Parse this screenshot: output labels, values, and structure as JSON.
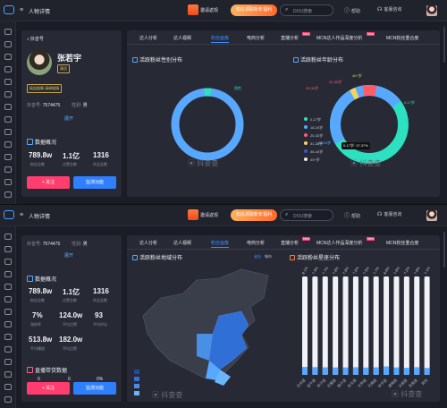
{
  "header": {
    "breadcrumb": "人物详情",
    "invite": "邀请返现",
    "promo": "知瓜领取新年福利",
    "search_placeholder": "DOU搜索",
    "help": "帮助",
    "support": "客服咨询"
  },
  "profile": {
    "platform": "抖音号",
    "name": "张若宇",
    "verified_tag": "演员",
    "category_tag": "搞笑剧情 演绎剧情",
    "douyin_id_label": "抖音号:",
    "douyin_id": "7574475",
    "gender_label": "性别:",
    "gender": "男",
    "expand": "展开",
    "overview_title": "数据概况",
    "stats_row1": [
      {
        "value": "789.8w",
        "label": "粉丝总数"
      },
      {
        "value": "1.1亿",
        "label": "点赞总数"
      },
      {
        "value": "1316",
        "label": "作品总数"
      }
    ],
    "stats_row2": [
      {
        "value": "7%",
        "label": "涨粉率"
      },
      {
        "value": "124.0w",
        "label": "平均点赞"
      },
      {
        "value": "93",
        "label": "平均评论"
      }
    ],
    "stats_row3": [
      {
        "value": "513.8w",
        "label": "平均播放"
      },
      {
        "value": "182.0w",
        "label": "平均点赞"
      }
    ],
    "live_title": "直播带货数据",
    "live_values": [
      "0",
      "0",
      "0%"
    ],
    "follow": "+ 关注",
    "monitor": "监测功能"
  },
  "tabs": [
    "达人分析",
    "达人视频",
    "粉丝画像",
    "电商分析",
    "直播分析",
    "MCN达人作品深度分析",
    "MCN粉丝重合度"
  ],
  "tab_badges": [
    "New",
    "New"
  ],
  "gender_chart": {
    "title": "活跃粉丝性别分布",
    "male_label": "男性",
    "female_label": "女性",
    "watermark": "抖查查"
  },
  "age_chart": {
    "title": "活跃粉丝年龄分布",
    "legend": [
      "0-17岁",
      "18-24岁",
      "25-30岁",
      "31-35岁",
      "36-40岁",
      "40+岁"
    ],
    "colors": [
      "#2de0c0",
      "#58a8ff",
      "#ff5c6a",
      "#f4d35e",
      "#3a57c9",
      "#e9e9ee"
    ],
    "callouts": [
      "40+岁",
      "31-35岁",
      "25-30岁",
      "18-24岁",
      "0-17岁"
    ],
    "tooltip": "0-17岁: 37.37%",
    "watermark": "抖查查"
  },
  "region_chart": {
    "title": "活跃粉丝地域分布",
    "tab_province": "省份",
    "tab_city": "城市",
    "watermark": "抖查查"
  },
  "hometown_chart": {
    "title": "活跃粉丝星座分布",
    "watermark": "抖查查"
  },
  "chart_data": [
    {
      "type": "pie",
      "title": "活跃粉丝性别分布",
      "categories": [
        "男性",
        "女性"
      ],
      "values": [
        3,
        97
      ]
    },
    {
      "type": "pie",
      "title": "活跃粉丝年龄分布",
      "categories": [
        "0-17岁",
        "18-24岁",
        "25-30岁",
        "31-35岁",
        "36-40岁",
        "40+岁"
      ],
      "values": [
        37.37,
        48,
        6,
        4,
        2,
        2.63
      ]
    },
    {
      "type": "bar",
      "title": "活跃粉丝星座分布",
      "categories": [
        "白羊座",
        "金牛座",
        "双子座",
        "巨蟹座",
        "狮子座",
        "处女座",
        "天秤座",
        "天蝎座",
        "射手座",
        "摩羯座",
        "水瓶座",
        "双鱼座",
        "其他"
      ],
      "values": [
        8.1,
        7.9,
        7.7,
        7.6,
        7.6,
        7.8,
        7.5,
        7.7,
        8.6,
        7.6,
        7.2,
        7.8,
        7.1
      ],
      "ylim": [
        0,
        100
      ]
    }
  ]
}
